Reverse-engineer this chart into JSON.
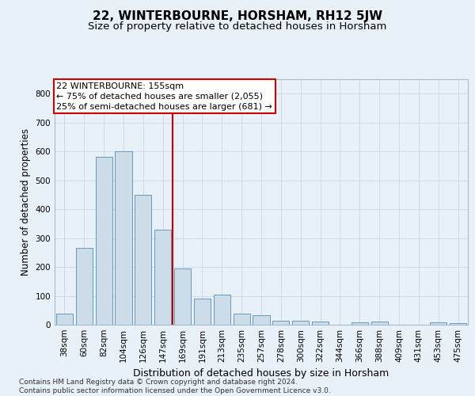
{
  "title": "22, WINTERBOURNE, HORSHAM, RH12 5JW",
  "subtitle": "Size of property relative to detached houses in Horsham",
  "xlabel": "Distribution of detached houses by size in Horsham",
  "ylabel": "Number of detached properties",
  "categories": [
    "38sqm",
    "60sqm",
    "82sqm",
    "104sqm",
    "126sqm",
    "147sqm",
    "169sqm",
    "191sqm",
    "213sqm",
    "235sqm",
    "257sqm",
    "278sqm",
    "300sqm",
    "322sqm",
    "344sqm",
    "366sqm",
    "388sqm",
    "409sqm",
    "431sqm",
    "453sqm",
    "475sqm"
  ],
  "values": [
    38,
    265,
    580,
    600,
    450,
    330,
    195,
    90,
    103,
    38,
    33,
    15,
    14,
    10,
    0,
    7,
    10,
    0,
    0,
    7,
    5
  ],
  "bar_color": "#ccdce8",
  "bar_edge_color": "#6699bb",
  "vline_x": 5.5,
  "vline_color": "#cc0000",
  "annotation_lines": [
    "22 WINTERBOURNE: 155sqm",
    "← 75% of detached houses are smaller (2,055)",
    "25% of semi-detached houses are larger (681) →"
  ],
  "annotation_box_color": "#cc0000",
  "ylim": [
    0,
    850
  ],
  "yticks": [
    0,
    100,
    200,
    300,
    400,
    500,
    600,
    700,
    800
  ],
  "grid_color": "#c8d8e8",
  "fig_bg_color": "#e8f0f8",
  "plot_bg_color": "#e8f0f8",
  "footer": "Contains HM Land Registry data © Crown copyright and database right 2024.\nContains public sector information licensed under the Open Government Licence v3.0.",
  "title_fontsize": 11,
  "subtitle_fontsize": 9.5,
  "xlabel_fontsize": 9,
  "ylabel_fontsize": 8.5,
  "tick_fontsize": 7.5,
  "annot_fontsize": 8,
  "footer_fontsize": 6.5
}
